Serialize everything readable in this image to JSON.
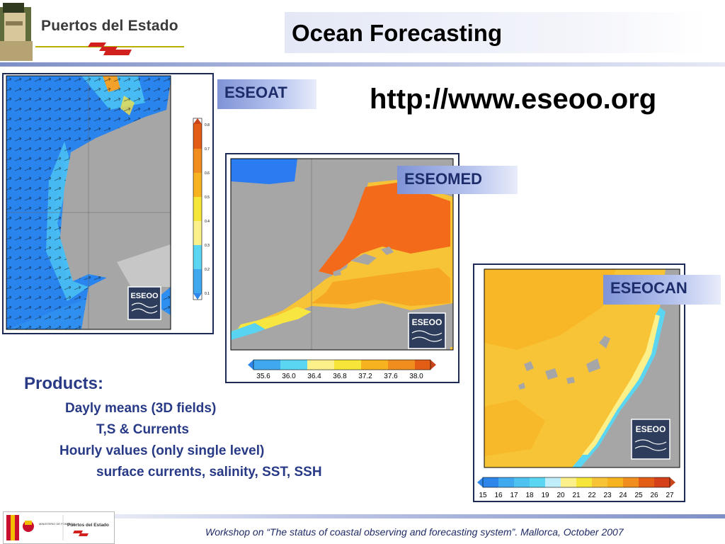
{
  "header": {
    "org_name": "Puertos del Estado",
    "title": "Ocean Forecasting"
  },
  "url": "http://www.eseoo.org",
  "maps": {
    "eseoat": {
      "label": "ESEOAT",
      "logo_text": "ESEOO",
      "colorbar_ticks": [
        "0.8",
        "0.7",
        "0.6",
        "0.5",
        "0.4",
        "0.3",
        "0.2",
        "0.1"
      ]
    },
    "eseomed": {
      "label": "ESEOMED",
      "logo_text": "ESEOO",
      "colorbar_ticks": [
        "35.6",
        "36.0",
        "36.4",
        "36.8",
        "37.2",
        "37.6",
        "38.0"
      ]
    },
    "eseocan": {
      "label": "ESEOCAN",
      "logo_text": "ESEOO",
      "colorbar_ticks": [
        "15",
        "16",
        "17",
        "18",
        "19",
        "20",
        "21",
        "22",
        "23",
        "24",
        "25",
        "26",
        "27"
      ]
    }
  },
  "products": {
    "title": "Products:",
    "line1": "Dayly means (3D fields)",
    "line2": "T,S & Currents",
    "line3": "Hourly values (only single level)",
    "line4": "surface currents, salinity, SST, SSH"
  },
  "footer": {
    "org_name": "Puertos del Estado",
    "ministry": "MINISTERIO DE FOMENTO",
    "text": "Workshop on “The status of coastal observing and forecasting system”. Mallorca, October 2007"
  },
  "colors": {
    "title_blue": "#1d2c6a",
    "products_blue": "#283a86",
    "land_gray": "#a6a6a6"
  }
}
